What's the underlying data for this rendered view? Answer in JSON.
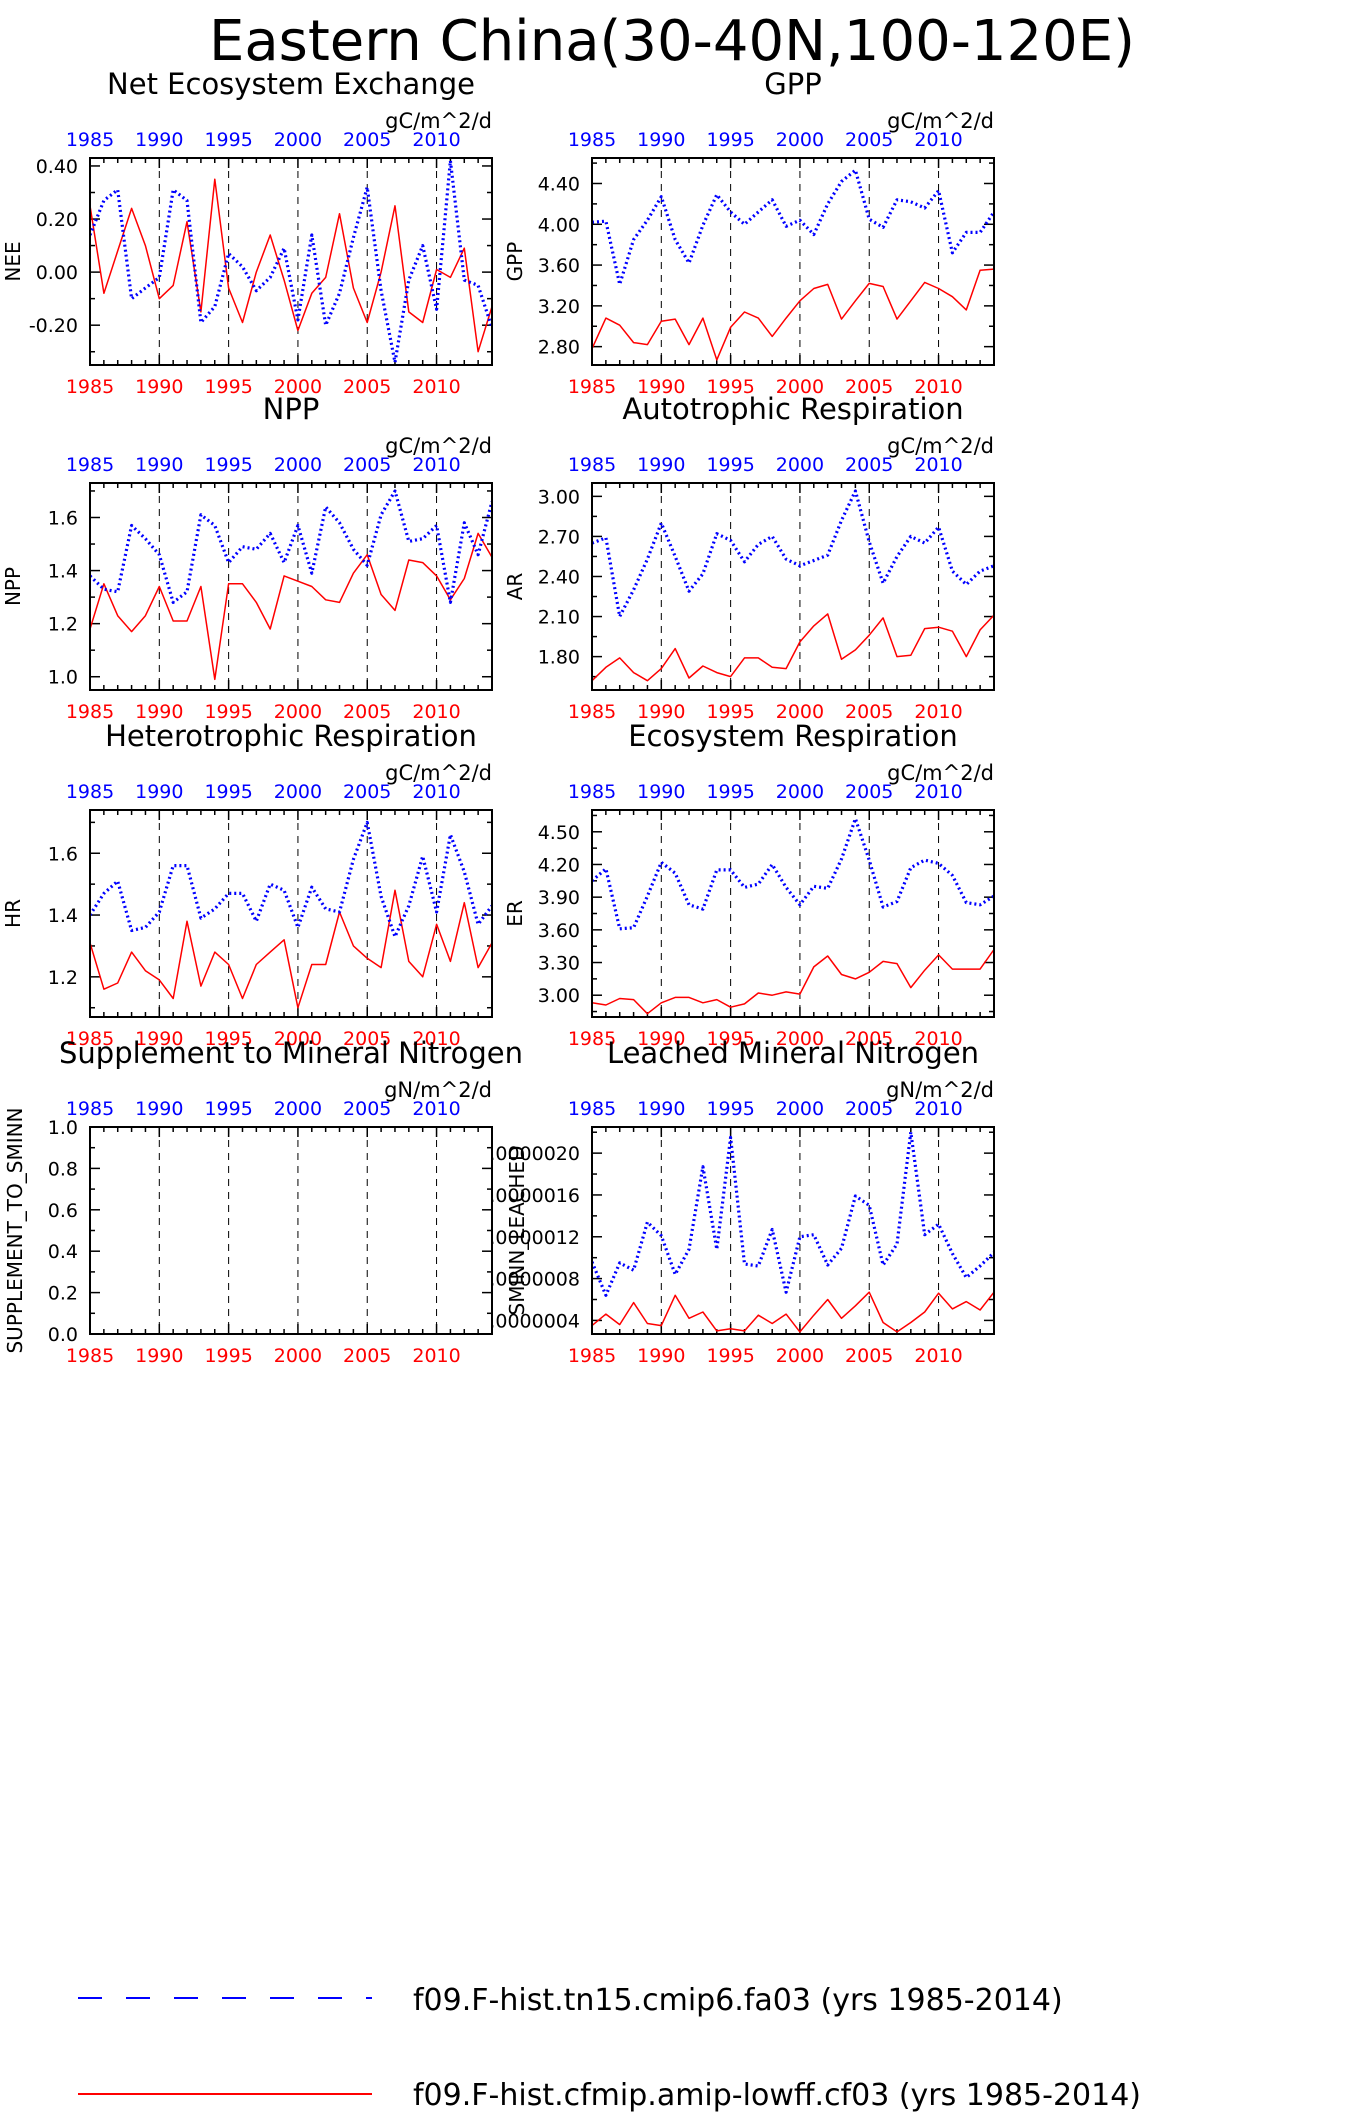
{
  "title": "Eastern China(30-40N,100-120E)",
  "colors": {
    "exp1": "#0000ff",
    "exp2": "#ff0000",
    "axis": "#000000",
    "grid": "#000000"
  },
  "legend": {
    "series1_label": "f09.F-hist.tn15.cmip6.fa03 (yrs 1985-2014)",
    "series2_label": "f09.F-hist.cfmip.amip-lowff.cf03 (yrs 1985-2014)",
    "series1_line": "dashed",
    "series2_line": "solid"
  },
  "chart_data": [
    {
      "type": "line",
      "title": "Net Ecosystem Exchange",
      "ylabel": "NEE",
      "units": "gC/m^2/d",
      "ylim": [
        -0.35,
        0.43
      ],
      "yticks": [
        -0.2,
        0.0,
        0.2,
        0.4
      ],
      "yticklabels": [
        "-0.20",
        "0.00",
        "0.20",
        "0.40"
      ],
      "xlim": [
        1985,
        2014
      ],
      "xticks": [
        1985,
        1990,
        1995,
        2000,
        2005,
        2010
      ],
      "x": [
        1985,
        1986,
        1987,
        1988,
        1989,
        1990,
        1991,
        1992,
        1993,
        1994,
        1995,
        1996,
        1997,
        1998,
        1999,
        2000,
        2001,
        2002,
        2003,
        2004,
        2005,
        2006,
        2007,
        2008,
        2009,
        2010,
        2011,
        2012,
        2013,
        2014
      ],
      "series": [
        {
          "name": "f09.F-hist.tn15.cmip6.fa03",
          "values": [
            0.14,
            0.27,
            0.31,
            -0.1,
            -0.06,
            -0.02,
            0.31,
            0.27,
            -0.19,
            -0.13,
            0.07,
            0.02,
            -0.07,
            -0.02,
            0.09,
            -0.18,
            0.14,
            -0.2,
            -0.08,
            0.13,
            0.32,
            -0.07,
            -0.34,
            -0.03,
            0.1,
            -0.14,
            0.42,
            -0.03,
            -0.05,
            -0.21
          ]
        },
        {
          "name": "f09.F-hist.cfmip.amip-lowff.cf03",
          "values": [
            0.25,
            -0.08,
            0.08,
            0.24,
            0.1,
            -0.1,
            -0.05,
            0.19,
            -0.15,
            0.35,
            -0.06,
            -0.19,
            0.0,
            0.14,
            -0.03,
            -0.22,
            -0.08,
            -0.02,
            0.22,
            -0.06,
            -0.19,
            0.0,
            0.25,
            -0.15,
            -0.19,
            0.01,
            -0.02,
            0.09,
            -0.3,
            -0.13
          ]
        }
      ]
    },
    {
      "type": "line",
      "title": "GPP",
      "ylabel": "GPP",
      "units": "gC/m^2/d",
      "ylim": [
        2.62,
        4.65
      ],
      "yticks": [
        2.8,
        3.2,
        3.6,
        4.0,
        4.4
      ],
      "yticklabels": [
        "2.80",
        "3.20",
        "3.60",
        "4.00",
        "4.40"
      ],
      "xlim": [
        1985,
        2014
      ],
      "xticks": [
        1985,
        1990,
        1995,
        2000,
        2005,
        2010
      ],
      "x": [
        1985,
        1986,
        1987,
        1988,
        1989,
        1990,
        1991,
        1992,
        1993,
        1994,
        1995,
        1996,
        1997,
        1998,
        1999,
        2000,
        2001,
        2002,
        2003,
        2004,
        2005,
        2006,
        2007,
        2008,
        2009,
        2010,
        2011,
        2012,
        2013,
        2014
      ],
      "series": [
        {
          "name": "f09.F-hist.tn15.cmip6.fa03",
          "values": [
            4.02,
            4.03,
            3.41,
            3.85,
            4.04,
            4.27,
            3.85,
            3.62,
            3.99,
            4.29,
            4.12,
            4.0,
            4.12,
            4.24,
            3.98,
            4.04,
            3.9,
            4.2,
            4.42,
            4.53,
            4.05,
            3.97,
            4.24,
            4.22,
            4.16,
            4.33,
            3.72,
            3.92,
            3.92,
            4.12
          ]
        },
        {
          "name": "f09.F-hist.cfmip.amip-lowff.cf03",
          "values": [
            2.78,
            3.08,
            3.01,
            2.84,
            2.82,
            3.05,
            3.07,
            2.82,
            3.08,
            2.67,
            2.99,
            3.14,
            3.08,
            2.9,
            3.08,
            3.25,
            3.37,
            3.41,
            3.07,
            3.25,
            3.42,
            3.39,
            3.07,
            3.25,
            3.43,
            3.37,
            3.29,
            3.16,
            3.55,
            3.56
          ]
        }
      ]
    },
    {
      "type": "line",
      "title": "NPP",
      "ylabel": "NPP",
      "units": "gC/m^2/d",
      "ylim": [
        0.95,
        1.73
      ],
      "yticks": [
        1.0,
        1.2,
        1.4,
        1.6
      ],
      "yticklabels": [
        "1.0",
        "1.2",
        "1.4",
        "1.6"
      ],
      "xlim": [
        1985,
        2014
      ],
      "xticks": [
        1985,
        1990,
        1995,
        2000,
        2005,
        2010
      ],
      "x": [
        1985,
        1986,
        1987,
        1988,
        1989,
        1990,
        1991,
        1992,
        1993,
        1994,
        1995,
        1996,
        1997,
        1998,
        1999,
        2000,
        2001,
        2002,
        2003,
        2004,
        2005,
        2006,
        2007,
        2008,
        2009,
        2010,
        2011,
        2012,
        2013,
        2014
      ],
      "series": [
        {
          "name": "f09.F-hist.tn15.cmip6.fa03",
          "values": [
            1.38,
            1.33,
            1.32,
            1.57,
            1.52,
            1.46,
            1.28,
            1.32,
            1.61,
            1.57,
            1.43,
            1.49,
            1.48,
            1.54,
            1.43,
            1.57,
            1.39,
            1.64,
            1.58,
            1.48,
            1.42,
            1.61,
            1.7,
            1.51,
            1.52,
            1.57,
            1.28,
            1.58,
            1.46,
            1.66
          ]
        },
        {
          "name": "f09.F-hist.cfmip.amip-lowff.cf03",
          "values": [
            1.18,
            1.35,
            1.23,
            1.17,
            1.23,
            1.34,
            1.21,
            1.21,
            1.34,
            0.99,
            1.35,
            1.35,
            1.28,
            1.18,
            1.38,
            1.36,
            1.34,
            1.29,
            1.28,
            1.39,
            1.46,
            1.31,
            1.25,
            1.44,
            1.43,
            1.38,
            1.29,
            1.37,
            1.54,
            1.45
          ]
        }
      ]
    },
    {
      "type": "line",
      "title": "Autotrophic Respiration",
      "ylabel": "AR",
      "units": "gC/m^2/d",
      "ylim": [
        1.55,
        3.1
      ],
      "yticks": [
        1.8,
        2.1,
        2.4,
        2.7,
        3.0
      ],
      "yticklabels": [
        "1.80",
        "2.10",
        "2.40",
        "2.70",
        "3.00"
      ],
      "xlim": [
        1985,
        2014
      ],
      "xticks": [
        1985,
        1990,
        1995,
        2000,
        2005,
        2010
      ],
      "x": [
        1985,
        1986,
        1987,
        1988,
        1989,
        1990,
        1991,
        1992,
        1993,
        1994,
        1995,
        1996,
        1997,
        1998,
        1999,
        2000,
        2001,
        2002,
        2003,
        2004,
        2005,
        2006,
        2007,
        2008,
        2009,
        2010,
        2011,
        2012,
        2013,
        2014
      ],
      "series": [
        {
          "name": "f09.F-hist.tn15.cmip6.fa03",
          "values": [
            2.65,
            2.69,
            2.1,
            2.3,
            2.53,
            2.8,
            2.55,
            2.29,
            2.42,
            2.72,
            2.67,
            2.51,
            2.64,
            2.7,
            2.53,
            2.48,
            2.52,
            2.56,
            2.82,
            3.04,
            2.66,
            2.35,
            2.55,
            2.7,
            2.65,
            2.77,
            2.44,
            2.34,
            2.44,
            2.48
          ]
        },
        {
          "name": "f09.F-hist.cfmip.amip-lowff.cf03",
          "values": [
            1.62,
            1.72,
            1.79,
            1.68,
            1.62,
            1.71,
            1.86,
            1.64,
            1.73,
            1.68,
            1.65,
            1.79,
            1.79,
            1.72,
            1.71,
            1.91,
            2.03,
            2.12,
            1.78,
            1.85,
            1.96,
            2.09,
            1.8,
            1.81,
            2.01,
            2.02,
            1.99,
            1.8,
            2.0,
            2.11
          ]
        }
      ]
    },
    {
      "type": "line",
      "title": "Heterotrophic Respiration",
      "ylabel": "HR",
      "units": "gC/m^2/d",
      "ylim": [
        1.07,
        1.74
      ],
      "yticks": [
        1.2,
        1.4,
        1.6
      ],
      "yticklabels": [
        "1.2",
        "1.4",
        "1.6"
      ],
      "xlim": [
        1985,
        2014
      ],
      "xticks": [
        1985,
        1990,
        1995,
        2000,
        2005,
        2010
      ],
      "x": [
        1985,
        1986,
        1987,
        1988,
        1989,
        1990,
        1991,
        1992,
        1993,
        1994,
        1995,
        1996,
        1997,
        1998,
        1999,
        2000,
        2001,
        2002,
        2003,
        2004,
        2005,
        2006,
        2007,
        2008,
        2009,
        2010,
        2011,
        2012,
        2013,
        2014
      ],
      "series": [
        {
          "name": "f09.F-hist.tn15.cmip6.fa03",
          "values": [
            1.4,
            1.47,
            1.51,
            1.35,
            1.36,
            1.41,
            1.56,
            1.56,
            1.39,
            1.42,
            1.47,
            1.47,
            1.38,
            1.5,
            1.48,
            1.36,
            1.49,
            1.42,
            1.41,
            1.58,
            1.7,
            1.46,
            1.33,
            1.43,
            1.59,
            1.41,
            1.66,
            1.54,
            1.37,
            1.43
          ]
        },
        {
          "name": "f09.F-hist.cfmip.amip-lowff.cf03",
          "values": [
            1.31,
            1.16,
            1.18,
            1.28,
            1.22,
            1.19,
            1.13,
            1.38,
            1.17,
            1.28,
            1.24,
            1.13,
            1.24,
            1.28,
            1.32,
            1.1,
            1.24,
            1.24,
            1.41,
            1.3,
            1.26,
            1.23,
            1.48,
            1.25,
            1.2,
            1.37,
            1.25,
            1.44,
            1.23,
            1.31
          ]
        }
      ]
    },
    {
      "type": "line",
      "title": "Ecosystem Respiration",
      "ylabel": "ER",
      "units": "gC/m^2/d",
      "ylim": [
        2.8,
        4.7
      ],
      "yticks": [
        3.0,
        3.3,
        3.6,
        3.9,
        4.2,
        4.5
      ],
      "yticklabels": [
        "3.00",
        "3.30",
        "3.60",
        "3.90",
        "4.20",
        "4.50"
      ],
      "xlim": [
        1985,
        2014
      ],
      "xticks": [
        1985,
        1990,
        1995,
        2000,
        2005,
        2010
      ],
      "x": [
        1985,
        1986,
        1987,
        1988,
        1989,
        1990,
        1991,
        1992,
        1993,
        1994,
        1995,
        1996,
        1997,
        1998,
        1999,
        2000,
        2001,
        2002,
        2003,
        2004,
        2005,
        2006,
        2007,
        2008,
        2009,
        2010,
        2011,
        2012,
        2013,
        2014
      ],
      "series": [
        {
          "name": "f09.F-hist.tn15.cmip6.fa03",
          "values": [
            4.05,
            4.16,
            3.61,
            3.62,
            3.91,
            4.22,
            4.12,
            3.83,
            3.79,
            4.15,
            4.15,
            3.99,
            4.02,
            4.2,
            3.99,
            3.83,
            4.0,
            3.98,
            4.25,
            4.62,
            4.24,
            3.81,
            3.86,
            4.17,
            4.24,
            4.21,
            4.1,
            3.85,
            3.83,
            3.91
          ]
        },
        {
          "name": "f09.F-hist.cfmip.amip-lowff.cf03",
          "values": [
            2.93,
            2.91,
            2.97,
            2.96,
            2.83,
            2.93,
            2.98,
            2.98,
            2.93,
            2.96,
            2.89,
            2.92,
            3.02,
            3.0,
            3.03,
            3.01,
            3.26,
            3.36,
            3.19,
            3.15,
            3.21,
            3.31,
            3.29,
            3.07,
            3.23,
            3.37,
            3.24,
            3.24,
            3.24,
            3.42
          ]
        }
      ]
    },
    {
      "type": "line",
      "title": "Supplement to Mineral Nitrogen",
      "ylabel": "SUPPLEMENT_TO_SMINN",
      "units": "gN/m^2/d",
      "ylim": [
        0.0,
        1.0
      ],
      "yticks": [
        0.0,
        0.2,
        0.4,
        0.6,
        0.8,
        1.0
      ],
      "yticklabels": [
        "0.0",
        "0.2",
        "0.4",
        "0.6",
        "0.8",
        "1.0"
      ],
      "xlim": [
        1985,
        2014
      ],
      "xticks": [
        1985,
        1990,
        1995,
        2000,
        2005,
        2010
      ],
      "x": [],
      "series": [
        {
          "name": "f09.F-hist.tn15.cmip6.fa03",
          "values": []
        },
        {
          "name": "f09.F-hist.cfmip.amip-lowff.cf03",
          "values": []
        }
      ]
    },
    {
      "type": "line",
      "title": "Leached Mineral Nitrogen",
      "ylabel": "SMINN_LEACHED",
      "units": "gN/m^2/d",
      "ylim": [
        2.7e-07,
        2.25e-06
      ],
      "yticks": [
        4e-07,
        8e-07,
        1.2e-06,
        1.6e-06,
        2e-06
      ],
      "yticklabels": [
        ".0000004",
        ".0000008",
        ".0000012",
        ".0000016",
        ".0000020"
      ],
      "xlim": [
        1985,
        2014
      ],
      "xticks": [
        1985,
        1990,
        1995,
        2000,
        2005,
        2010
      ],
      "x": [
        1985,
        1986,
        1987,
        1988,
        1989,
        1990,
        1991,
        1992,
        1993,
        1994,
        1995,
        1996,
        1997,
        1998,
        1999,
        2000,
        2001,
        2002,
        2003,
        2004,
        2005,
        2006,
        2007,
        2008,
        2009,
        2010,
        2011,
        2012,
        2013,
        2014
      ],
      "series": [
        {
          "name": "f09.F-hist.tn15.cmip6.fa03",
          "values": [
            9.6e-07,
            6.4e-07,
            9.5e-07,
            8.8e-07,
            1.34e-06,
            1.21e-06,
            8.4e-07,
            1.08e-06,
            1.87e-06,
            1.08e-06,
            2.15e-06,
            9.4e-07,
            9.2e-07,
            1.27e-06,
            6.7e-07,
            1.2e-06,
            1.22e-06,
            9.3e-07,
            1.09e-06,
            1.59e-06,
            1.5e-06,
            9.3e-07,
            1.13e-06,
            2.2e-06,
            1.22e-06,
            1.32e-06,
            1.04e-06,
            8.1e-07,
            9.2e-07,
            1.05e-06
          ]
        },
        {
          "name": "f09.F-hist.cfmip.amip-lowff.cf03",
          "values": [
            3.5e-07,
            4.6e-07,
            3.6e-07,
            5.7e-07,
            3.7e-07,
            3.5e-07,
            6.4e-07,
            4.2e-07,
            4.8e-07,
            3e-07,
            3.2e-07,
            3e-07,
            4.5e-07,
            3.7e-07,
            4.6e-07,
            2.9e-07,
            4.5e-07,
            6e-07,
            4.2e-07,
            5.4e-07,
            6.7e-07,
            3.8e-07,
            2.9e-07,
            3.8e-07,
            4.8e-07,
            6.6e-07,
            5.1e-07,
            5.8e-07,
            5e-07,
            6.7e-07
          ]
        }
      ]
    }
  ]
}
